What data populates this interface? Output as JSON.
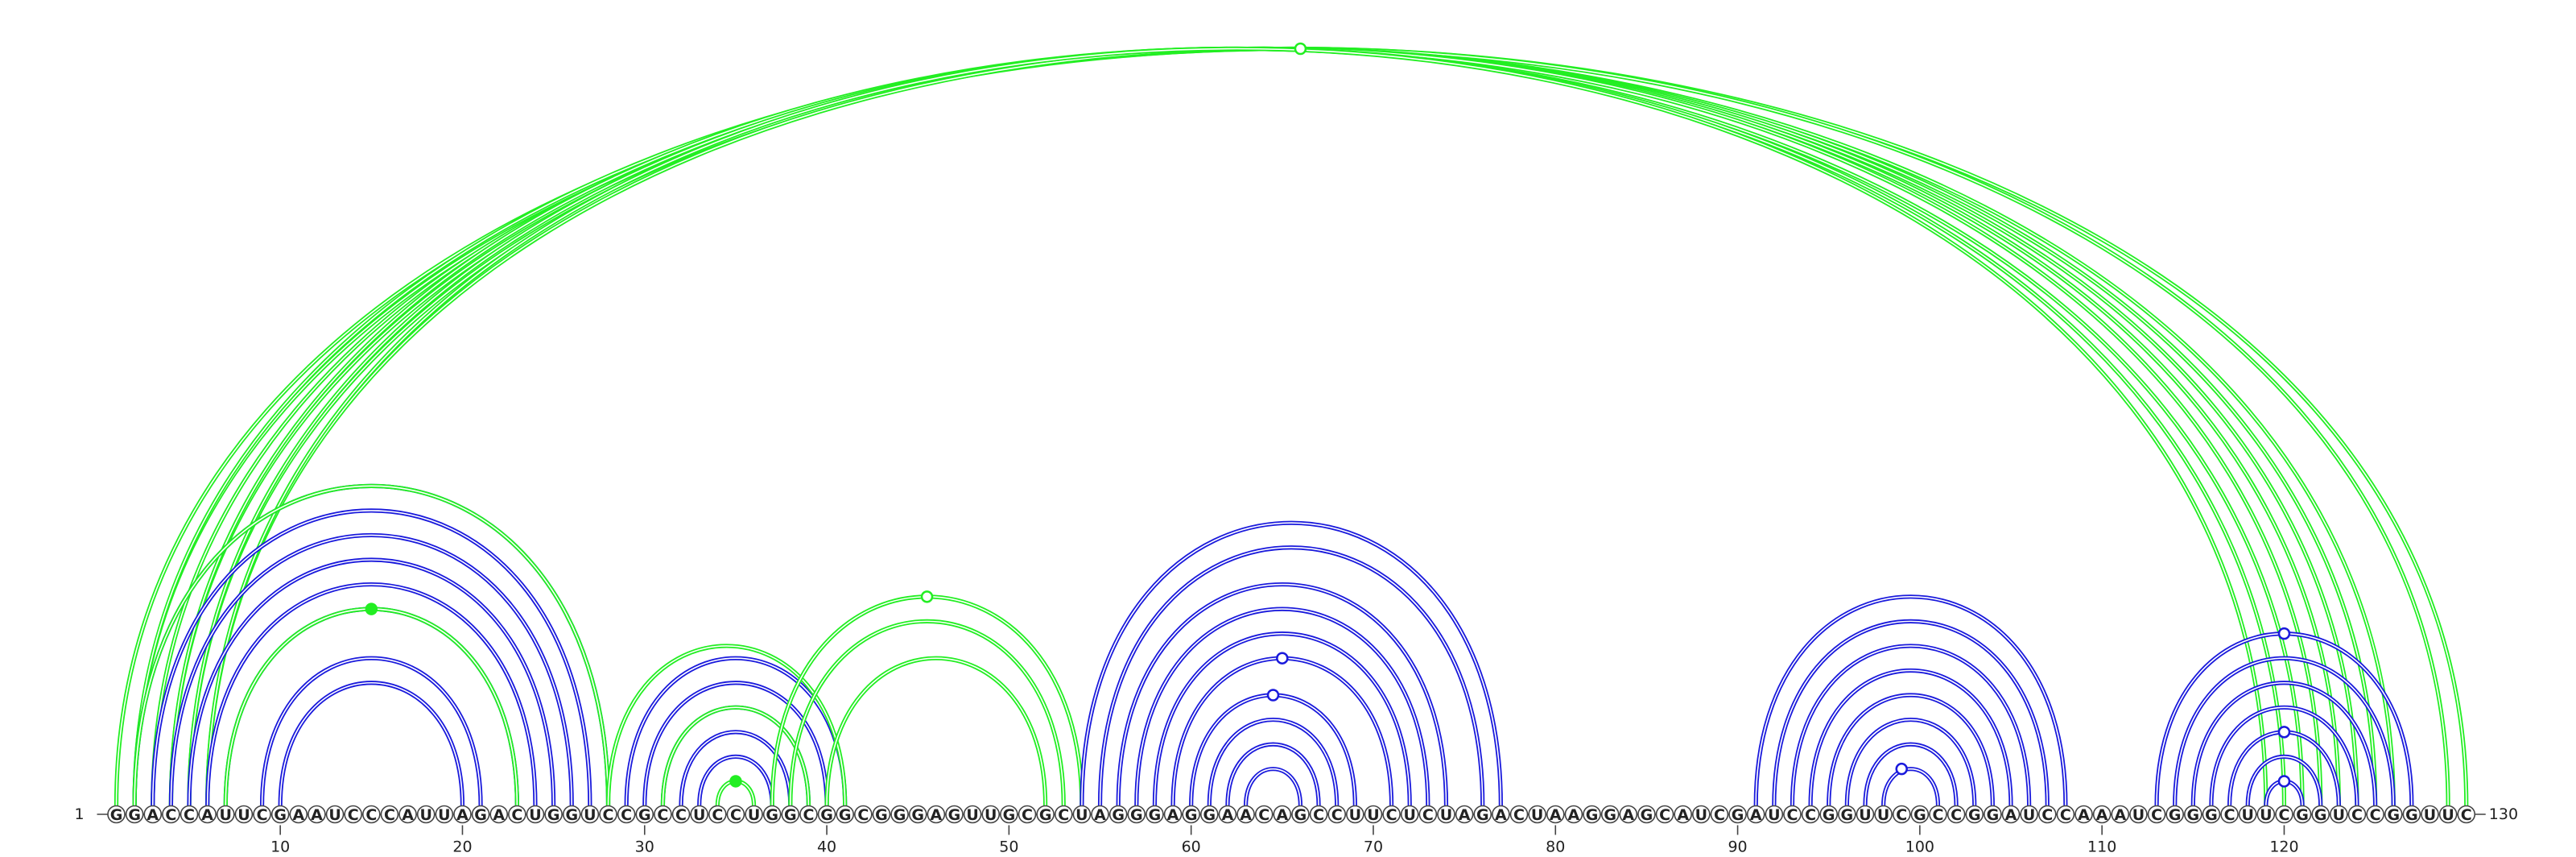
{
  "sequence": "GGACCAUUCGAAUCCCAUUAGACUGGUCCGCCUCCUGGCGGCGGGAGUUGCGCUAGGGAGGAACAGCCUUCUCUAGACUAAGGAGCAUCGAUCCGGUUCGCCGGAUCCAAAUCGGGCUUCGGUCCGGUUC",
  "start_label": "1",
  "end_label": "130",
  "tick_labels": [
    "10",
    "20",
    "30",
    "40",
    "50",
    "60",
    "70",
    "80",
    "90",
    "100",
    "110",
    "120"
  ],
  "colors": {
    "primary": "#1a1adc",
    "alternative": "#22ee22",
    "outline": "#444444"
  },
  "arcs": [
    {
      "color": "alternative",
      "i": 1,
      "j": 130
    },
    {
      "color": "alternative",
      "i": 2,
      "j": 129
    },
    {
      "color": "alternative",
      "i": 2,
      "j": 126
    },
    {
      "color": "alternative",
      "i": 3,
      "j": 125
    },
    {
      "color": "alternative",
      "i": 4,
      "j": 124
    },
    {
      "color": "alternative",
      "i": 5,
      "j": 123
    },
    {
      "color": "alternative",
      "i": 6,
      "j": 122
    },
    {
      "color": "alternative",
      "i": 4,
      "j": 121
    },
    {
      "color": "alternative",
      "i": 5,
      "j": 120
    },
    {
      "color": "alternative",
      "i": 6,
      "j": 119
    },
    {
      "color": "primary",
      "i": 2,
      "j": 28
    },
    {
      "color": "primary",
      "i": 3,
      "j": 27
    },
    {
      "color": "primary",
      "i": 4,
      "j": 26
    },
    {
      "color": "primary",
      "i": 5,
      "j": 25
    },
    {
      "color": "primary",
      "i": 6,
      "j": 24
    },
    {
      "color": "primary",
      "i": 7,
      "j": 23
    },
    {
      "color": "primary",
      "i": 9,
      "j": 21
    },
    {
      "color": "primary",
      "i": 10,
      "j": 20
    },
    {
      "color": "alternative",
      "i": 2,
      "j": 28
    },
    {
      "color": "alternative",
      "i": 7,
      "j": 23
    },
    {
      "color": "primary",
      "i": 29,
      "j": 41
    },
    {
      "color": "primary",
      "i": 30,
      "j": 40
    },
    {
      "color": "primary",
      "i": 31,
      "j": 39
    },
    {
      "color": "primary",
      "i": 32,
      "j": 38
    },
    {
      "color": "primary",
      "i": 33,
      "j": 37
    },
    {
      "color": "alternative",
      "i": 28,
      "j": 41
    },
    {
      "color": "alternative",
      "i": 31,
      "j": 39
    },
    {
      "color": "alternative",
      "i": 34,
      "j": 36
    },
    {
      "color": "alternative",
      "i": 37,
      "j": 54
    },
    {
      "color": "alternative",
      "i": 38,
      "j": 53
    },
    {
      "color": "alternative",
      "i": 40,
      "j": 52
    },
    {
      "color": "primary",
      "i": 54,
      "j": 77
    },
    {
      "color": "primary",
      "i": 55,
      "j": 76
    },
    {
      "color": "primary",
      "i": 56,
      "j": 74
    },
    {
      "color": "primary",
      "i": 57,
      "j": 73
    },
    {
      "color": "primary",
      "i": 58,
      "j": 72
    },
    {
      "color": "primary",
      "i": 59,
      "j": 71
    },
    {
      "color": "primary",
      "i": 60,
      "j": 69
    },
    {
      "color": "primary",
      "i": 61,
      "j": 68
    },
    {
      "color": "primary",
      "i": 62,
      "j": 67
    },
    {
      "color": "primary",
      "i": 63,
      "j": 66
    },
    {
      "color": "primary",
      "i": 91,
      "j": 108
    },
    {
      "color": "primary",
      "i": 92,
      "j": 107
    },
    {
      "color": "primary",
      "i": 93,
      "j": 106
    },
    {
      "color": "primary",
      "i": 94,
      "j": 105
    },
    {
      "color": "primary",
      "i": 95,
      "j": 104
    },
    {
      "color": "primary",
      "i": 96,
      "j": 103
    },
    {
      "color": "primary",
      "i": 97,
      "j": 102
    },
    {
      "color": "primary",
      "i": 98,
      "j": 101
    },
    {
      "color": "primary",
      "i": 113,
      "j": 127
    },
    {
      "color": "primary",
      "i": 114,
      "j": 126
    },
    {
      "color": "primary",
      "i": 115,
      "j": 125
    },
    {
      "color": "primary",
      "i": 116,
      "j": 124
    },
    {
      "color": "primary",
      "i": 117,
      "j": 123
    },
    {
      "color": "primary",
      "i": 118,
      "j": 122
    },
    {
      "color": "primary",
      "i": 119,
      "j": 121
    }
  ],
  "markers": [
    {
      "color": "alternative",
      "center": 66,
      "height_of": [
        1,
        130
      ],
      "filled": false
    },
    {
      "color": "alternative",
      "center": 15,
      "height_of": [
        7,
        23
      ],
      "filled": true
    },
    {
      "color": "alternative",
      "center": 35,
      "height_of": [
        34,
        36
      ],
      "filled": true
    },
    {
      "color": "alternative",
      "center": 45.5,
      "height_of": [
        37,
        54
      ],
      "filled": false
    },
    {
      "color": "primary",
      "center": 65,
      "height_of": [
        59,
        71
      ],
      "filled": false
    },
    {
      "color": "primary",
      "center": 64.5,
      "height_of": [
        60,
        69
      ],
      "filled": false
    },
    {
      "color": "primary",
      "center": 99,
      "height_of": [
        98,
        101
      ],
      "filled": false
    },
    {
      "color": "primary",
      "center": 120,
      "height_of": [
        113,
        127
      ],
      "filled": false
    },
    {
      "color": "primary",
      "center": 120,
      "height_of": [
        117,
        123
      ],
      "filled": false
    },
    {
      "color": "primary",
      "center": 120,
      "height_of": [
        119,
        121
      ],
      "filled": false
    }
  ]
}
